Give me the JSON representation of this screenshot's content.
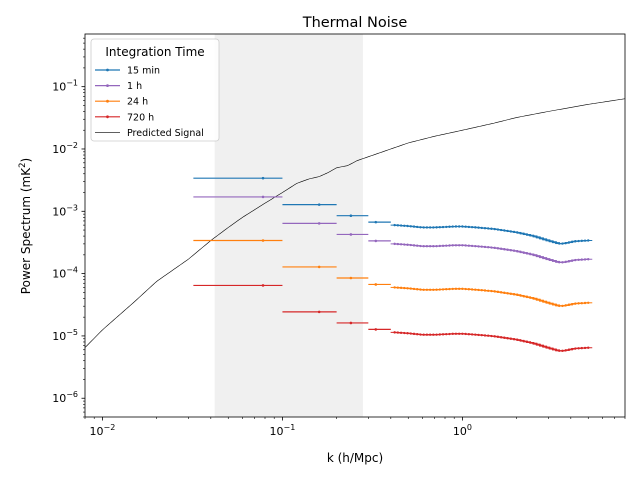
{
  "chart_data": {
    "type": "line",
    "title": "Thermal Noise",
    "xlabel": "k (h/Mpc)",
    "ylabel_main": "Power Spectrum (mK",
    "ylabel_sup": "2",
    "ylabel_close": ")",
    "xscale": "log",
    "yscale": "log",
    "xlim": [
      0.008,
      8.0
    ],
    "ylim": [
      5e-07,
      0.7
    ],
    "x_ticks": [
      {
        "value": 0.01,
        "base": "10",
        "exp": "−2"
      },
      {
        "value": 0.1,
        "base": "10",
        "exp": "−1"
      },
      {
        "value": 1,
        "base": "10",
        "exp": "0"
      }
    ],
    "y_ticks": [
      {
        "value": 1e-06,
        "base": "10",
        "exp": "−6"
      },
      {
        "value": 1e-05,
        "base": "10",
        "exp": "−5"
      },
      {
        "value": 0.0001,
        "base": "10",
        "exp": "−4"
      },
      {
        "value": 0.001,
        "base": "10",
        "exp": "−3"
      },
      {
        "value": 0.01,
        "base": "10",
        "exp": "−2"
      },
      {
        "value": 0.1,
        "base": "10",
        "exp": "−1"
      }
    ],
    "shaded_region": {
      "x": [
        0.042,
        0.28
      ],
      "color": "#f0f0f0"
    },
    "legend": {
      "title": "Integration Time",
      "placement": "upper-left",
      "entries": [
        {
          "label": "15 min",
          "color": "#1f77b4"
        },
        {
          "label": "1 h",
          "color": "#9467bd"
        },
        {
          "label": "24 h",
          "color": "#ff7f0e"
        },
        {
          "label": "720 h",
          "color": "#d62728"
        },
        {
          "label": "Predicted Signal",
          "color": "#000000"
        }
      ]
    },
    "noise_series": [
      {
        "name": "15 min",
        "color": "#1f77b4",
        "scale": 1.0
      },
      {
        "name": "1 h",
        "color": "#9467bd",
        "scale": 0.5
      },
      {
        "name": "24 h",
        "color": "#ff7f0e",
        "scale": 0.1
      },
      {
        "name": "720 h",
        "color": "#d62728",
        "scale": 0.019
      }
    ],
    "noise_bins_15min": [
      {
        "k": 0.078,
        "k_lo": 0.032,
        "k_hi": 0.1,
        "p": 0.0034
      },
      {
        "k": 0.16,
        "k_lo": 0.1,
        "k_hi": 0.2,
        "p": 0.00128
      },
      {
        "k": 0.24,
        "k_lo": 0.2,
        "k_hi": 0.3,
        "p": 0.00085
      },
      {
        "k": 0.33,
        "k_lo": 0.3,
        "k_hi": 0.4,
        "p": 0.00067
      }
    ],
    "noise_curve_15min": [
      {
        "k": 0.42,
        "p": 0.0006
      },
      {
        "k": 0.5,
        "p": 0.00058
      },
      {
        "k": 0.6,
        "p": 0.00055
      },
      {
        "k": 0.7,
        "p": 0.00055
      },
      {
        "k": 0.8,
        "p": 0.00056
      },
      {
        "k": 0.9,
        "p": 0.00057
      },
      {
        "k": 1.0,
        "p": 0.00057
      },
      {
        "k": 1.2,
        "p": 0.00055
      },
      {
        "k": 1.5,
        "p": 0.00052
      },
      {
        "k": 2.0,
        "p": 0.00046
      },
      {
        "k": 2.5,
        "p": 0.0004
      },
      {
        "k": 3.0,
        "p": 0.00034
      },
      {
        "k": 3.5,
        "p": 0.0003
      },
      {
        "k": 3.8,
        "p": 0.00031
      },
      {
        "k": 4.2,
        "p": 0.00033
      },
      {
        "k": 5.0,
        "p": 0.00034
      }
    ],
    "signal_points": [
      {
        "k": 0.008,
        "p": 6.5e-06
      },
      {
        "k": 0.01,
        "p": 1.25e-05
      },
      {
        "k": 0.015,
        "p": 3.5e-05
      },
      {
        "k": 0.02,
        "p": 7.5e-05
      },
      {
        "k": 0.03,
        "p": 0.00017
      },
      {
        "k": 0.04,
        "p": 0.00034
      },
      {
        "k": 0.05,
        "p": 0.00055
      },
      {
        "k": 0.06,
        "p": 0.0008
      },
      {
        "k": 0.08,
        "p": 0.00135
      },
      {
        "k": 0.1,
        "p": 0.002
      },
      {
        "k": 0.12,
        "p": 0.0028
      },
      {
        "k": 0.14,
        "p": 0.0033
      },
      {
        "k": 0.16,
        "p": 0.0036
      },
      {
        "k": 0.18,
        "p": 0.0042
      },
      {
        "k": 0.2,
        "p": 0.005
      },
      {
        "k": 0.23,
        "p": 0.0054
      },
      {
        "k": 0.26,
        "p": 0.0065
      },
      {
        "k": 0.3,
        "p": 0.0075
      },
      {
        "k": 0.4,
        "p": 0.01
      },
      {
        "k": 0.5,
        "p": 0.0125
      },
      {
        "k": 0.7,
        "p": 0.016
      },
      {
        "k": 1.0,
        "p": 0.02
      },
      {
        "k": 1.5,
        "p": 0.026
      },
      {
        "k": 2.0,
        "p": 0.032
      },
      {
        "k": 3.0,
        "p": 0.04
      },
      {
        "k": 5.0,
        "p": 0.052
      },
      {
        "k": 8.0,
        "p": 0.064
      }
    ]
  }
}
